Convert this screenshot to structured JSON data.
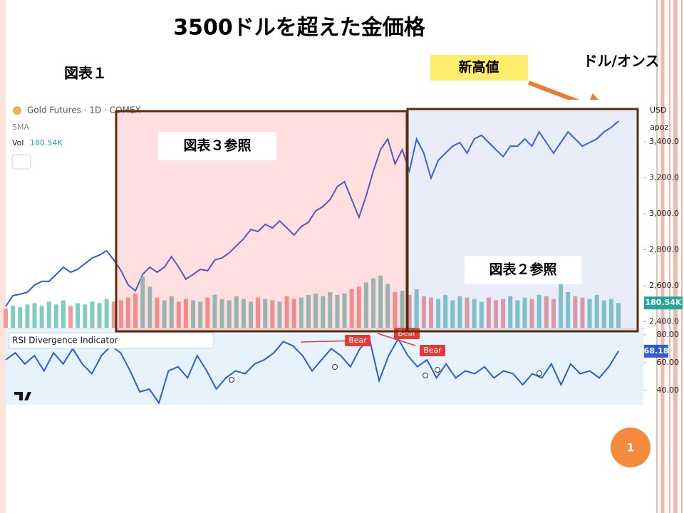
{
  "header": {
    "title": "3500ドルを超えた金価格",
    "figure_label": "図表１",
    "unit": "ドル/オンス",
    "callout": "新高値",
    "page_number": "1"
  },
  "notes": [
    "図表３参照",
    "図表２参照"
  ],
  "chart_data": [
    {
      "type": "line",
      "title": "Gold Futures · 1D · COMEX",
      "indicator": "SMA",
      "currency": "USD",
      "scale_label": "apoz",
      "color": "#2f5bd3",
      "values": [
        2485,
        2545,
        2553,
        2564,
        2604,
        2624,
        2624,
        2663,
        2703,
        2675,
        2691,
        2723,
        2754,
        2770,
        2794,
        2743,
        2683,
        2604,
        2572,
        2663,
        2703,
        2675,
        2703,
        2762,
        2703,
        2636,
        2663,
        2691,
        2683,
        2743,
        2754,
        2782,
        2822,
        2861,
        2913,
        2901,
        2941,
        2921,
        2960,
        2921,
        2881,
        2929,
        2953,
        3016,
        3040,
        3079,
        3151,
        3178,
        3079,
        2980,
        3099,
        3238,
        3356,
        3416,
        3277,
        3356,
        3238,
        3416,
        3337,
        3198,
        3297,
        3337,
        3376,
        3396,
        3337,
        3416,
        3436,
        3396,
        3356,
        3317,
        3376,
        3376,
        3416,
        3376,
        3455,
        3396,
        3337,
        3396,
        3455,
        3416,
        3376,
        3396,
        3416,
        3455,
        3480,
        3515
      ],
      "ylim": [
        2360,
        3600
      ],
      "yticks": [
        {
          "value": 2400,
          "label": "2,400.0"
        },
        {
          "value": 2600,
          "label": "2,600.0"
        },
        {
          "value": 2800,
          "label": "2,800.0"
        },
        {
          "value": 3000,
          "label": "3,000.0"
        },
        {
          "value": 3200,
          "label": "3,200.0"
        },
        {
          "value": 3400,
          "label": "3,400.0"
        }
      ]
    },
    {
      "type": "bar",
      "name": "Vol",
      "last_label": "180.54K",
      "colors": [
        "#ef9a9a",
        "#80cbc4"
      ],
      "values": [
        140,
        160,
        150,
        170,
        180,
        160,
        190,
        170,
        200,
        160,
        180,
        170,
        190,
        180,
        210,
        190,
        200,
        220,
        250,
        370,
        300,
        220,
        200,
        230,
        190,
        210,
        200,
        190,
        220,
        240,
        210,
        200,
        230,
        210,
        190,
        220,
        210,
        200,
        190,
        230,
        210,
        220,
        240,
        250,
        230,
        260,
        240,
        250,
        280,
        300,
        330,
        360,
        380,
        320,
        260,
        270,
        240,
        280,
        230,
        220,
        210,
        240,
        200,
        230,
        220,
        210,
        190,
        220,
        200,
        210,
        230,
        200,
        220,
        210,
        240,
        230,
        210,
        350,
        260,
        230,
        220,
        210,
        240,
        200,
        210,
        180.54
      ],
      "ylim": [
        0,
        400
      ]
    },
    {
      "type": "line",
      "title": "RSI Divergence Indicator",
      "color": "#2f5bd3",
      "values": [
        62,
        67,
        59,
        65,
        54,
        67,
        59,
        70,
        59,
        52,
        65,
        72,
        67,
        54,
        39,
        41,
        31,
        54,
        57,
        49,
        65,
        54,
        41,
        49,
        54,
        52,
        59,
        62,
        67,
        75,
        72,
        65,
        54,
        62,
        70,
        65,
        57,
        70,
        77,
        47,
        65,
        77,
        65,
        57,
        62,
        49,
        59,
        49,
        54,
        52,
        57,
        49,
        54,
        52,
        44,
        52,
        49,
        59,
        44,
        59,
        52,
        54,
        49,
        57,
        68.18
      ],
      "ylim": [
        30,
        85
      ],
      "yticks": [
        {
          "value": 40,
          "label": "40.00"
        },
        {
          "value": 60,
          "label": "60.00"
        },
        {
          "value": 80,
          "label": "80.00"
        }
      ],
      "annotations": [
        "Bear",
        "Bear",
        "Bear"
      ]
    }
  ]
}
